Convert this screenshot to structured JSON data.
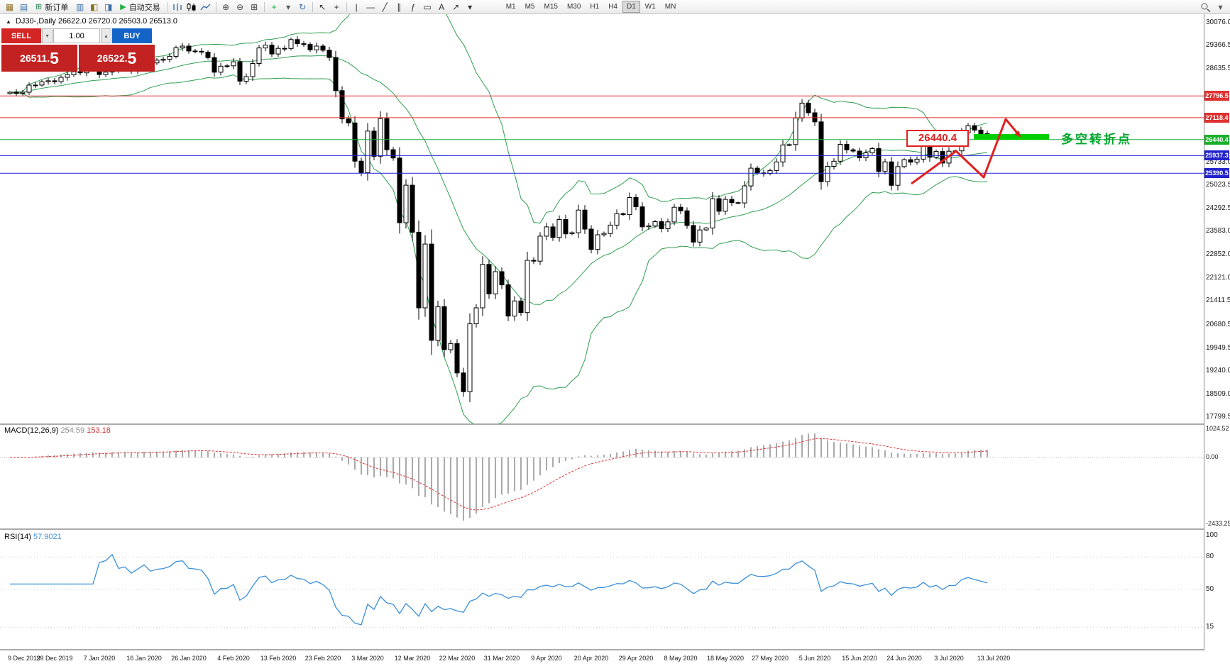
{
  "window": {
    "background": "#ffffff"
  },
  "toolbar": {
    "items": [
      {
        "type": "icon",
        "name": "chart-window-icon",
        "glyph": "▦",
        "color": "#8a6d1f"
      },
      {
        "type": "icon",
        "name": "tick-chart-icon",
        "glyph": "▤",
        "color": "#3a6ea5"
      },
      {
        "type": "button",
        "name": "new-order-button",
        "icon": "⊞",
        "icon_color": "#2e8b57",
        "label": "新订单"
      },
      {
        "type": "icon",
        "name": "market-watch-icon",
        "glyph": "▥",
        "color": "#3a6ea5"
      },
      {
        "type": "icon",
        "name": "navigator-icon",
        "glyph": "◧",
        "color": "#8a6d1f"
      },
      {
        "type": "icon",
        "name": "terminal-icon",
        "glyph": "◨",
        "color": "#3a6ea5"
      },
      {
        "type": "button",
        "name": "auto-trading-button",
        "icon": "▶",
        "icon_color": "#1fae3e",
        "label": "自动交易"
      },
      {
        "type": "sep"
      },
      {
        "type": "svg",
        "name": "bar-chart-type-icon",
        "shape": "bars"
      },
      {
        "type": "svg",
        "name": "candlestick-chart-type-icon",
        "shape": "candles"
      },
      {
        "type": "svg",
        "name": "line-chart-type-icon",
        "shape": "line"
      },
      {
        "type": "sep"
      },
      {
        "type": "icon",
        "name": "zoom-in-icon",
        "glyph": "⊕",
        "color": "#444444"
      },
      {
        "type": "icon",
        "name": "zoom-out-icon",
        "glyph": "⊖",
        "color": "#444444"
      },
      {
        "type": "icon",
        "name": "tile-windows-icon",
        "glyph": "⊞",
        "color": "#444444"
      },
      {
        "type": "sep"
      },
      {
        "type": "icon",
        "name": "indicators-add-icon",
        "glyph": "+",
        "color": "#1fae3e"
      },
      {
        "type": "icon",
        "name": "indicators-caret-icon",
        "glyph": "▾",
        "color": "#555555"
      },
      {
        "type": "icon",
        "name": "cycle-icon",
        "glyph": "↻",
        "color": "#3a6ea5"
      },
      {
        "type": "sep"
      },
      {
        "type": "icon",
        "name": "cursor-icon",
        "glyph": "↖",
        "color": "#333333"
      },
      {
        "type": "icon",
        "name": "crosshair-icon",
        "glyph": "+",
        "color": "#333333"
      },
      {
        "type": "sep"
      },
      {
        "type": "icon",
        "name": "vertical-line-icon",
        "glyph": "|",
        "color": "#333333"
      },
      {
        "type": "icon",
        "name": "horizontal-line-icon",
        "glyph": "—",
        "color": "#333333"
      },
      {
        "type": "icon",
        "name": "trendline-icon",
        "glyph": "╱",
        "color": "#333333"
      },
      {
        "type": "icon",
        "name": "channel-icon",
        "glyph": "∥",
        "color": "#333333"
      },
      {
        "type": "icon",
        "name": "fibonacci-icon",
        "glyph": "ƒ",
        "color": "#333333"
      },
      {
        "type": "icon",
        "name": "shapes-icon",
        "glyph": "▭",
        "color": "#333333"
      },
      {
        "type": "icon",
        "name": "text-label-icon",
        "glyph": "A",
        "color": "#333333"
      },
      {
        "type": "icon",
        "name": "arrows-icon",
        "glyph": "↗",
        "color": "#333333"
      },
      {
        "type": "icon",
        "name": "more-tools-caret-icon",
        "glyph": "▾",
        "color": "#333333"
      }
    ],
    "timeframes": {
      "options": [
        "M1",
        "M5",
        "M15",
        "M30",
        "H1",
        "H4",
        "D1",
        "W1",
        "MN"
      ],
      "active": "D1"
    },
    "right_items": [
      {
        "type": "svg",
        "name": "search-icon",
        "shape": "magnifier"
      },
      {
        "type": "icon",
        "name": "toolbar-options-caret-icon",
        "glyph": "▾",
        "color": "#555555"
      }
    ]
  },
  "symbol_info": {
    "icon": "▲",
    "text": "DJ30-,Daily  26622.0 26720.0 26503.0 26513.0"
  },
  "trade_panel": {
    "sell_label": "SELL",
    "buy_label": "BUY",
    "volume": "1.00",
    "spin_down": "▾",
    "spin_up": "▴",
    "sell_price_main": "26511.",
    "sell_price_pip": "5",
    "buy_price_main": "26522.",
    "buy_price_pip": "5",
    "sell_color": "#d42525",
    "buy_color": "#1464c8",
    "price_box_color": "#c32222"
  },
  "chart_data": {
    "type": "candlestick",
    "symbol": "DJ30-",
    "timeframe": "Daily",
    "current_ohlc": {
      "open": "26622.0",
      "high": "26720.0",
      "low": "26503.0",
      "close": "26513.0"
    },
    "y_range": [
      17799.5,
      30076.0
    ],
    "y_axis_labels": [
      30076.0,
      29366.5,
      28635.5,
      25733.0,
      25023.5,
      24292.5,
      23583.0,
      22852.0,
      22121.0,
      21411.5,
      20680.5,
      19949.5,
      19240.0,
      18509.0,
      17799.5
    ],
    "x_labels": [
      "9 Dec 2019",
      "29 Dec 2019",
      "7 Jan 2020",
      "16 Jan 2020",
      "26 Jan 2020",
      "4 Feb 2020",
      "13 Feb 2020",
      "23 Feb 2020",
      "3 Mar 2020",
      "12 Mar 2020",
      "22 Mar 2020",
      "31 Mar 2020",
      "9 Apr 2020",
      "20 Apr 2020",
      "29 Apr 2020",
      "8 May 2020",
      "18 May 2020",
      "27 May 2020",
      "5 Jun 2020",
      "15 Jun 2020",
      "24 Jun 2020",
      "3 Jul 2020",
      "13 Jul 2020"
    ],
    "closes": [
      27910,
      27880,
      27911,
      28132,
      28135,
      28235,
      28267,
      28239,
      28376,
      28455,
      28551,
      28515,
      28621,
      28645,
      28462,
      28538,
      28868,
      28634,
      28703,
      28583,
      28745,
      28956,
      28823,
      28907,
      28939,
      29030,
      29297,
      29348,
      29196,
      29186,
      29160,
      28989,
      28535,
      28722,
      28734,
      28859,
      28256,
      28399,
      28807,
      29290,
      29379,
      29102,
      29276,
      29276,
      29551,
      29423,
      29398,
      29232,
      29348,
      29219,
      28992,
      27960,
      27081,
      26957,
      25766,
      25409,
      26703,
      25917,
      27090,
      26121,
      25864,
      23851,
      25018,
      23553,
      21200,
      23185,
      20188,
      21237,
      19898,
      20087,
      19173,
      18591,
      20704,
      21200,
      22552,
      21636,
      22327,
      21917,
      20943,
      21413,
      21052,
      22679,
      22653,
      23433,
      23719,
      23390,
      23949,
      23504,
      23537,
      24242,
      23650,
      23018,
      23475,
      23515,
      23775,
      24133,
      24101,
      24633,
      24345,
      23723,
      23749,
      23883,
      23664,
      23875,
      24331,
      24221,
      23764,
      23247,
      23625,
      23685,
      24597,
      24206,
      24575,
      24474,
      24465,
      24995,
      25548,
      25400,
      25383,
      25475,
      25742,
      26269,
      26281,
      27110,
      27572,
      27272,
      26989,
      25128,
      25605,
      25763,
      26289,
      26119,
      26080,
      25871,
      26024,
      26156,
      25445,
      25745,
      25015,
      25595,
      25812,
      25734,
      25827,
      26287,
      25890,
      26067,
      25706,
      26075,
      26085,
      26642,
      26870,
      26734,
      26622,
      26513
    ],
    "last_ohlc": [
      26622.0,
      26720.0,
      26503.0,
      26513.0
    ],
    "hlines": [
      {
        "price": 27796.5,
        "label": "27796.5",
        "color": "#e03030",
        "badge": "#e03030"
      },
      {
        "price": 27118.4,
        "label": "27118.4",
        "color": "#e03030",
        "badge": "#e03030"
      },
      {
        "price": 26440.4,
        "label": "26440.4",
        "color": "#1fae3e",
        "badge": "#18b028"
      },
      {
        "price": 25937.3,
        "label": "25937.3",
        "color": "#2222dd",
        "badge": "#2222cc"
      },
      {
        "price": 25390.5,
        "label": "25390.5",
        "color": "#2222dd",
        "badge": "#2222cc"
      }
    ],
    "annotations": {
      "callout_text": "26440.4",
      "turning_point_text": "多空转折点",
      "arrow_points": [
        [
          1284,
          259
        ],
        [
          1347,
          213
        ],
        [
          1386,
          250
        ],
        [
          1417,
          168
        ],
        [
          1437,
          192
        ]
      ],
      "arrow_color": "#e02020",
      "green_bar": {
        "x": 1372,
        "y": 189,
        "w": 106,
        "h": 8,
        "color": "#00ce00"
      },
      "text_color": "#00a62c"
    },
    "colors": {
      "bull": "#ffffff",
      "bear": "#000000",
      "wick": "#000000",
      "bands": "#2f9e4f",
      "macd_hist": "#aaaaaa",
      "macd_signal": "#e03030",
      "rsi_line": "#3b8fd8"
    },
    "macd": {
      "label": "MACD(12,26,9)",
      "value_main": "254.59",
      "value_signal": "153.18",
      "axis": [
        1024.52,
        0,
        -2433.25
      ],
      "axis_labels": [
        "1024.52",
        "0.00",
        "-2433.25"
      ]
    },
    "rsi": {
      "label": "RSI(14)",
      "value": "57.9021",
      "axis": [
        100,
        80,
        50,
        15
      ],
      "axis_labels": [
        "100",
        "80",
        "50",
        "15"
      ],
      "levels": [
        80,
        50,
        15
      ]
    }
  }
}
